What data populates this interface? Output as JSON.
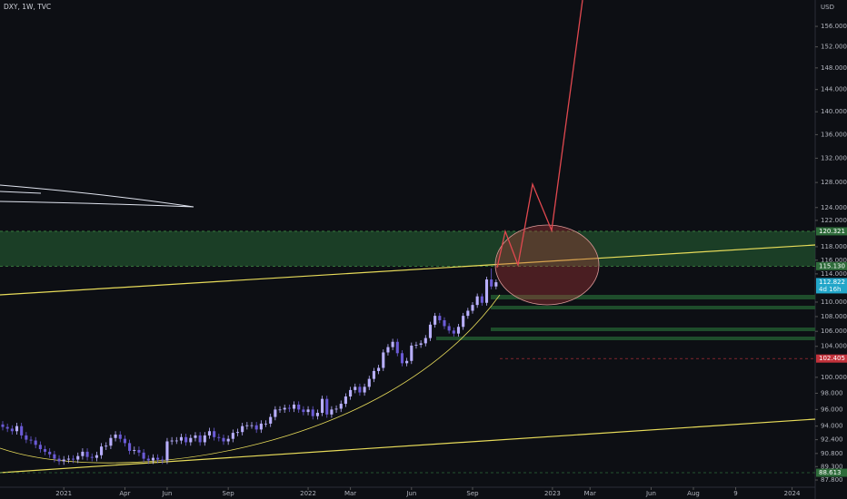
{
  "chart_data": {
    "type": "candlestick",
    "title": "DXY, 1W, TVC",
    "unit": "USD",
    "log_scale": true,
    "ylim": [
      87,
      161.3
    ],
    "yticks": [
      {
        "value": 156,
        "label": "156.000"
      },
      {
        "value": 152,
        "label": "152.000"
      },
      {
        "value": 148,
        "label": "148.000"
      },
      {
        "value": 144,
        "label": "144.000"
      },
      {
        "value": 140,
        "label": "140.000"
      },
      {
        "value": 136,
        "label": "136.000"
      },
      {
        "value": 132,
        "label": "132.000"
      },
      {
        "value": 128,
        "label": "128.000"
      },
      {
        "value": 124,
        "label": "124.000"
      },
      {
        "value": 122,
        "label": "122.000"
      },
      {
        "value": 118,
        "label": "118.000"
      },
      {
        "value": 116,
        "label": "116.000"
      },
      {
        "value": 114,
        "label": "114.000"
      },
      {
        "value": 110,
        "label": "110.000"
      },
      {
        "value": 108,
        "label": "108.000"
      },
      {
        "value": 106,
        "label": "106.000"
      },
      {
        "value": 104,
        "label": "104.000"
      },
      {
        "value": 100,
        "label": "100.000"
      },
      {
        "value": 98,
        "label": "98.000"
      },
      {
        "value": 96,
        "label": "96.000"
      },
      {
        "value": 94,
        "label": "94.000"
      },
      {
        "value": 92.4,
        "label": "92.400"
      },
      {
        "value": 90.8,
        "label": "90.800"
      },
      {
        "value": 89.3,
        "label": "89.300"
      },
      {
        "value": 87.8,
        "label": "87.800"
      }
    ],
    "xlim": [
      -0.58,
      172.92
    ],
    "xticks": [
      {
        "value": 13,
        "label": "2021"
      },
      {
        "value": 26,
        "label": "Apr"
      },
      {
        "value": 35,
        "label": "Jun"
      },
      {
        "value": 48,
        "label": "Sep"
      },
      {
        "value": 65,
        "label": "2022"
      },
      {
        "value": 74,
        "label": "Mar"
      },
      {
        "value": 87,
        "label": "Jun"
      },
      {
        "value": 100,
        "label": "Sep"
      },
      {
        "value": 117,
        "label": "2023"
      },
      {
        "value": 125,
        "label": "Mar"
      },
      {
        "value": 138,
        "label": "Jun"
      },
      {
        "value": 147,
        "label": "Aug"
      },
      {
        "value": 156,
        "label": "9"
      },
      {
        "value": 168,
        "label": "2024"
      }
    ],
    "up_color": "#b9b0ff",
    "down_color": "#6b5bd6",
    "open": [
      94.2,
      93.9,
      93.7,
      93.4,
      94.0,
      92.9,
      92.4,
      92.3,
      91.8,
      91.3,
      91.0,
      90.7,
      90.2,
      89.9,
      90.1,
      90.2,
      90.1,
      90.5,
      91.0,
      90.4,
      90.3,
      90.6,
      91.6,
      91.7,
      92.6,
      93.0,
      92.5,
      92.0,
      91.1,
      91.2,
      90.9,
      90.2,
      90.0,
      90.3,
      90.1,
      90.0,
      92.2,
      92.3,
      92.3,
      92.7,
      92.1,
      92.6,
      92.9,
      92.1,
      92.9,
      93.4,
      92.7,
      92.6,
      92.2,
      92.5,
      93.2,
      93.3,
      94.0,
      94.1,
      94.1,
      93.6,
      94.3,
      94.3,
      95.1,
      96.0,
      96.0,
      96.2,
      96.1,
      96.6,
      96.0,
      95.7,
      96.0,
      95.2,
      95.6,
      97.3,
      95.4,
      96.0,
      96.1,
      96.7,
      97.6,
      98.4,
      98.8,
      98.1,
      98.8,
      99.8,
      100.8,
      101.2,
      103.2,
      103.9,
      104.6,
      103.1,
      101.8,
      102.1,
      104.1,
      104.2,
      104.4,
      105.1,
      106.9,
      108.1,
      107.5,
      106.7,
      106.1,
      105.7,
      106.6,
      108.1,
      108.8,
      109.6,
      110.8,
      109.9,
      113.2,
      112.2
    ],
    "high": [
      94.6,
      94.3,
      94.1,
      94.4,
      94.4,
      93.3,
      92.8,
      92.7,
      92.2,
      91.7,
      91.4,
      91.1,
      90.6,
      90.5,
      90.6,
      90.6,
      90.9,
      91.4,
      91.4,
      90.8,
      91.0,
      92.0,
      92.1,
      93.0,
      93.4,
      93.4,
      92.9,
      92.4,
      91.6,
      91.6,
      91.3,
      90.6,
      90.7,
      90.7,
      90.5,
      92.6,
      92.7,
      92.7,
      93.1,
      93.1,
      93.0,
      93.3,
      93.3,
      93.3,
      93.8,
      93.8,
      93.1,
      93.0,
      92.9,
      93.6,
      93.7,
      94.4,
      94.5,
      94.5,
      94.5,
      94.7,
      94.7,
      95.5,
      96.4,
      96.4,
      96.6,
      96.6,
      97.0,
      97.0,
      96.4,
      96.4,
      96.4,
      96.0,
      97.7,
      97.7,
      96.4,
      96.5,
      97.1,
      98.0,
      98.8,
      99.2,
      99.2,
      99.2,
      100.2,
      101.2,
      101.6,
      103.6,
      104.3,
      105.0,
      105.0,
      103.5,
      102.5,
      104.5,
      104.6,
      104.8,
      105.5,
      107.3,
      108.5,
      108.5,
      107.9,
      107.1,
      106.5,
      107.0,
      108.5,
      109.2,
      110.0,
      111.2,
      111.2,
      113.6,
      114.8,
      113.2
    ],
    "low": [
      93.5,
      93.3,
      93.0,
      93.0,
      92.5,
      92.0,
      91.9,
      91.4,
      90.9,
      90.6,
      90.3,
      89.8,
      89.5,
      89.5,
      89.7,
      89.7,
      89.7,
      90.1,
      90.0,
      89.9,
      89.9,
      90.2,
      91.2,
      91.3,
      92.2,
      92.1,
      91.6,
      90.7,
      90.7,
      90.5,
      89.8,
      89.6,
      89.6,
      89.7,
      89.6,
      89.6,
      91.8,
      91.9,
      91.9,
      91.7,
      91.7,
      92.2,
      91.7,
      91.7,
      92.5,
      92.3,
      92.2,
      91.8,
      91.8,
      92.1,
      92.8,
      92.9,
      93.6,
      93.7,
      93.2,
      93.2,
      93.9,
      93.9,
      94.7,
      95.6,
      95.6,
      95.7,
      95.7,
      95.6,
      95.3,
      95.3,
      94.8,
      94.8,
      95.2,
      95.0,
      95.0,
      95.6,
      95.7,
      96.3,
      97.2,
      98.0,
      97.7,
      97.7,
      98.4,
      99.4,
      100.4,
      100.8,
      102.8,
      103.5,
      102.7,
      101.4,
      101.4,
      101.7,
      103.7,
      103.8,
      104.0,
      104.7,
      106.5,
      107.1,
      106.3,
      105.7,
      105.3,
      105.3,
      106.2,
      107.7,
      108.4,
      109.2,
      109.5,
      109.5,
      111.8,
      111.8
    ],
    "close": [
      93.9,
      93.7,
      93.4,
      94.0,
      92.9,
      92.4,
      92.3,
      91.8,
      91.3,
      91.0,
      90.7,
      90.2,
      89.9,
      90.1,
      90.2,
      90.1,
      90.5,
      91.0,
      90.4,
      90.3,
      90.6,
      91.6,
      91.7,
      92.6,
      93.0,
      92.5,
      92.0,
      91.1,
      91.2,
      90.9,
      90.2,
      90.0,
      90.3,
      90.1,
      90.0,
      92.2,
      92.3,
      92.3,
      92.7,
      92.1,
      92.6,
      92.9,
      92.1,
      92.9,
      93.4,
      92.7,
      92.6,
      92.2,
      92.5,
      93.2,
      93.3,
      94.0,
      94.1,
      94.1,
      93.6,
      94.3,
      94.3,
      95.1,
      96.0,
      96.0,
      96.2,
      96.1,
      96.6,
      96.0,
      95.7,
      96.0,
      95.2,
      95.6,
      97.3,
      95.4,
      96.0,
      96.1,
      96.7,
      97.6,
      98.4,
      98.8,
      98.1,
      98.8,
      99.8,
      100.8,
      101.2,
      103.2,
      103.9,
      104.6,
      103.1,
      101.8,
      102.1,
      104.1,
      104.2,
      104.4,
      105.1,
      106.9,
      108.1,
      107.5,
      106.7,
      106.1,
      105.7,
      106.6,
      108.1,
      108.8,
      109.6,
      110.8,
      109.9,
      113.2,
      112.2,
      112.8
    ],
    "zone": [
      115.13,
      120.321
    ],
    "zone_color": "#1f4a2a",
    "price_labels": [
      {
        "value": 120.321,
        "label": "120.321",
        "color": "#2e6b3a"
      },
      {
        "value": 115.13,
        "label": "115.130",
        "color": "#2e6b3a"
      },
      {
        "value": 112.822,
        "label": "112.822",
        "color": "#22a6c9",
        "countdown": "4d 16h"
      },
      {
        "value": 102.405,
        "label": "102.405",
        "color": "#c2323b"
      },
      {
        "value": 88.613,
        "label": "88.613",
        "color": "#2e6b3a"
      }
    ]
  }
}
